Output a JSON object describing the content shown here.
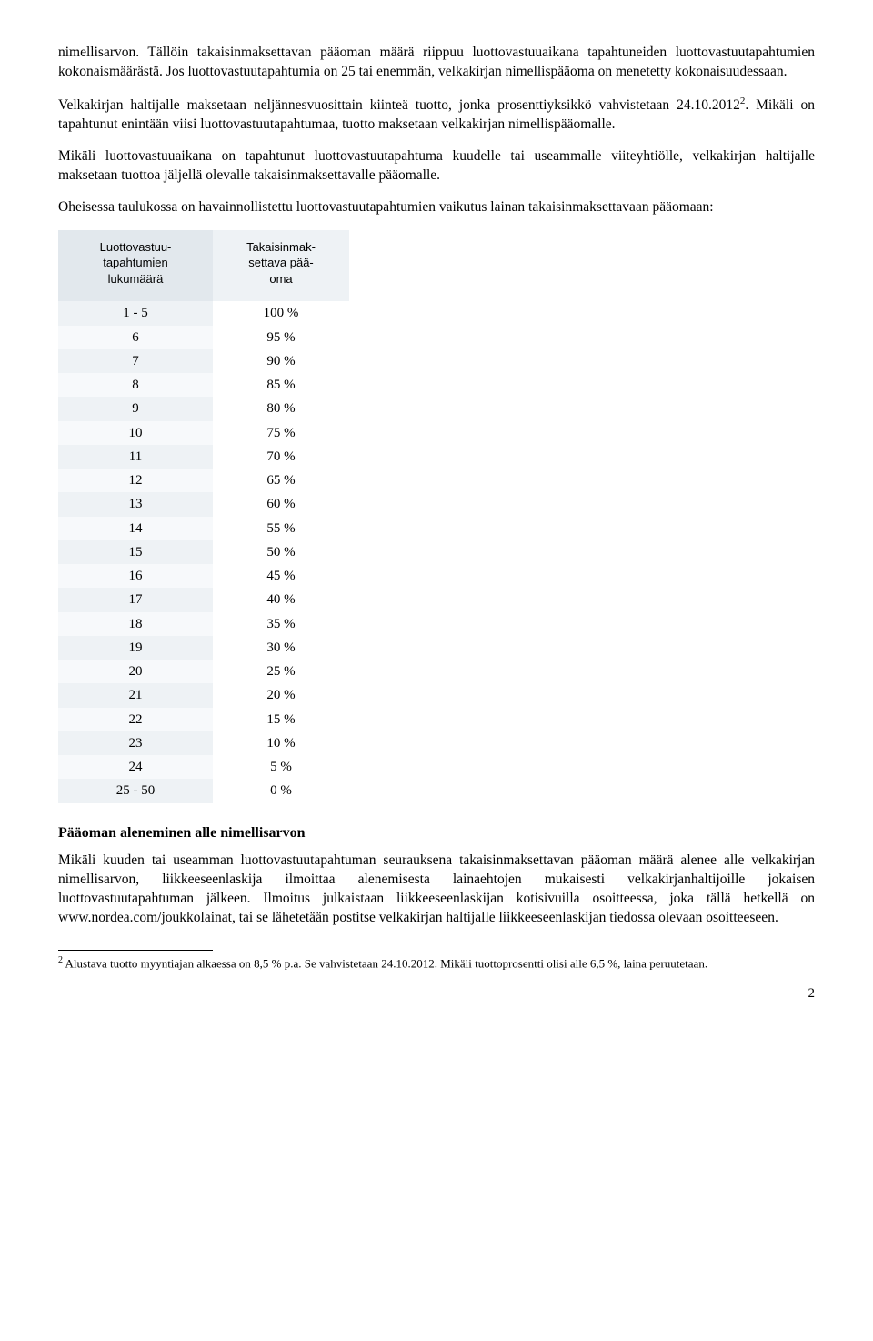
{
  "paragraphs": {
    "p1": "nimellisarvon. Tällöin takaisinmaksettavan pääoman määrä riippuu luottovastuuaikana tapahtuneiden luottovastuutapahtumien kokonaismäärästä. Jos luottovastuutapahtumia on 25 tai enemmän, velkakirjan nimellispääoma on menetetty kokonaisuudessaan.",
    "p2_a": "Velkakirjan haltijalle maksetaan neljännesvuosittain kiinteä tuotto, jonka prosenttiyksikkö vahvistetaan 24.10.2012",
    "p2_sup": "2",
    "p2_b": ". Mikäli on tapahtunut enintään viisi luottovastuutapahtumaa, tuotto maksetaan velkakirjan nimellispääomalle.",
    "p3": "Mikäli luottovastuuaikana on tapahtunut luottovastuutapahtuma kuudelle tai useammalle viiteyhtiölle, velkakirjan haltijalle maksetaan tuottoa jäljellä olevalle takaisinmaksettavalle pääomalle.",
    "p4": "Oheisessa taulukossa on havainnollistettu luottovastuutapahtumien vaikutus lainan takaisinmaksettavaan pääomaan:"
  },
  "table": {
    "headers": {
      "col1": "Luottovastuu-tapahtumien lukumäärä",
      "col2": "Takaisinmak-settava pää-oma"
    },
    "header_bg_a": "#e2e8ed",
    "header_bg_b": "#eef2f5",
    "row_bg_a": "#eef2f5",
    "row_bg_b": "#f7f9fb",
    "font_family_header": "Verdana",
    "font_size_header": 13,
    "rows": [
      [
        "1 - 5",
        "100 %"
      ],
      [
        "6",
        "95 %"
      ],
      [
        "7",
        "90 %"
      ],
      [
        "8",
        "85 %"
      ],
      [
        "9",
        "80 %"
      ],
      [
        "10",
        "75 %"
      ],
      [
        "11",
        "70 %"
      ],
      [
        "12",
        "65 %"
      ],
      [
        "13",
        "60 %"
      ],
      [
        "14",
        "55 %"
      ],
      [
        "15",
        "50 %"
      ],
      [
        "16",
        "45 %"
      ],
      [
        "17",
        "40 %"
      ],
      [
        "18",
        "35 %"
      ],
      [
        "19",
        "30 %"
      ],
      [
        "20",
        "25 %"
      ],
      [
        "21",
        "20 %"
      ],
      [
        "22",
        "15 %"
      ],
      [
        "23",
        "10 %"
      ],
      [
        "24",
        "5 %"
      ],
      [
        "25 - 50",
        "0 %"
      ]
    ]
  },
  "section2": {
    "heading": "Pääoman aleneminen alle nimellisarvon",
    "body": "Mikäli kuuden tai useamman luottovastuutapahtuman seurauksena takaisinmaksettavan pääoman määrä alenee alle velkakirjan nimellisarvon, liikkeeseenlaskija ilmoittaa alenemisesta lainaehtojen mukaisesti velkakirjanhaltijoille jokaisen luottovastuutapahtuman jälkeen. Ilmoitus julkaistaan liikkeeseenlaskijan kotisivuilla osoitteessa, joka tällä hetkellä on www.nordea.com/joukkolainat, tai se lähetetään postitse velkakirjan haltijalle liikkeeseenlaskijan tiedossa olevaan osoitteeseen."
  },
  "footnote": {
    "marker": "2",
    "text": " Alustava tuotto myyntiajan alkaessa on 8,5 % p.a. Se vahvistetaan 24.10.2012. Mikäli tuottoprosentti olisi alle 6,5 %, laina peruutetaan."
  },
  "page_number": "2"
}
